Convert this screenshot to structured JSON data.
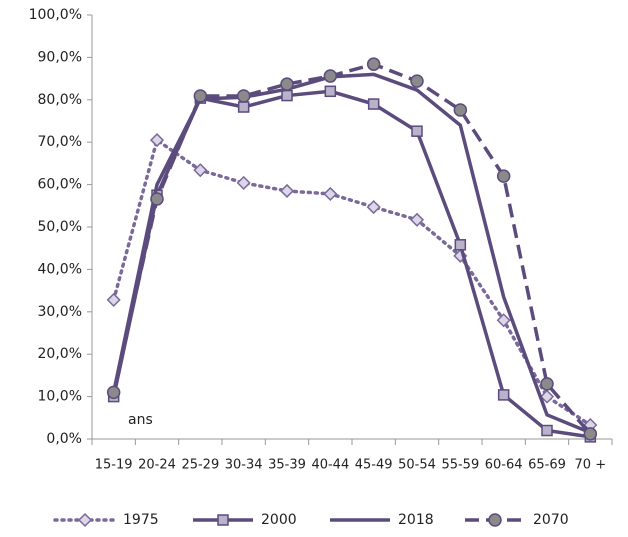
{
  "chart_data": {
    "type": "line",
    "categories": [
      "15-19",
      "20-24",
      "25-29",
      "30-34",
      "35-39",
      "40-44",
      "45-49",
      "50-54",
      "55-59",
      "60-64",
      "65-69",
      "70 +"
    ],
    "series": [
      {
        "name": "1975",
        "color": "#7a6a99",
        "dash": "dotted",
        "marker": "diamond",
        "marker_fill": "#dcd6e8",
        "values": [
          32.8,
          70.5,
          63.4,
          60.4,
          58.5,
          57.8,
          54.7,
          51.7,
          43.2,
          28,
          10,
          3.3
        ]
      },
      {
        "name": "2000",
        "color": "#5c4b7d",
        "dash": "solid",
        "marker": "square",
        "marker_fill": "#b9b2cb",
        "values": [
          10,
          57.5,
          80.4,
          78.3,
          81,
          82,
          79,
          72.6,
          45.8,
          10.4,
          2,
          0.5
        ]
      },
      {
        "name": "2018",
        "color": "#5c4b7d",
        "dash": "solid",
        "marker": "none",
        "values": [
          11,
          60,
          80.2,
          80.6,
          82.5,
          85.4,
          86,
          82.3,
          74,
          33.5,
          5.7,
          1.5
        ]
      },
      {
        "name": "2070",
        "color": "#5c4b7d",
        "dash": "dashed",
        "marker": "circle",
        "marker_fill": "#8a8a8a",
        "values": [
          11,
          56.6,
          80.9,
          80.9,
          83.7,
          85.6,
          88.4,
          84.4,
          77.6,
          62,
          13,
          1.2
        ]
      }
    ],
    "ylim": [
      0,
      100
    ],
    "yticks": [
      {
        "value": 0,
        "label": "0,0%"
      },
      {
        "value": 10,
        "label": "10,0%"
      },
      {
        "value": 20,
        "label": "20,0%"
      },
      {
        "value": 30,
        "label": "30,0%"
      },
      {
        "value": 40,
        "label": "40,0%"
      },
      {
        "value": 50,
        "label": "50,0%"
      },
      {
        "value": 60,
        "label": "60,0%"
      },
      {
        "value": 70,
        "label": "70,0%"
      },
      {
        "value": 80,
        "label": "80,0%"
      },
      {
        "value": 90,
        "label": "90,0%"
      },
      {
        "value": 100,
        "label": "100,0%"
      }
    ],
    "annotation": "ans",
    "legend": "bottom",
    "grid": false
  }
}
